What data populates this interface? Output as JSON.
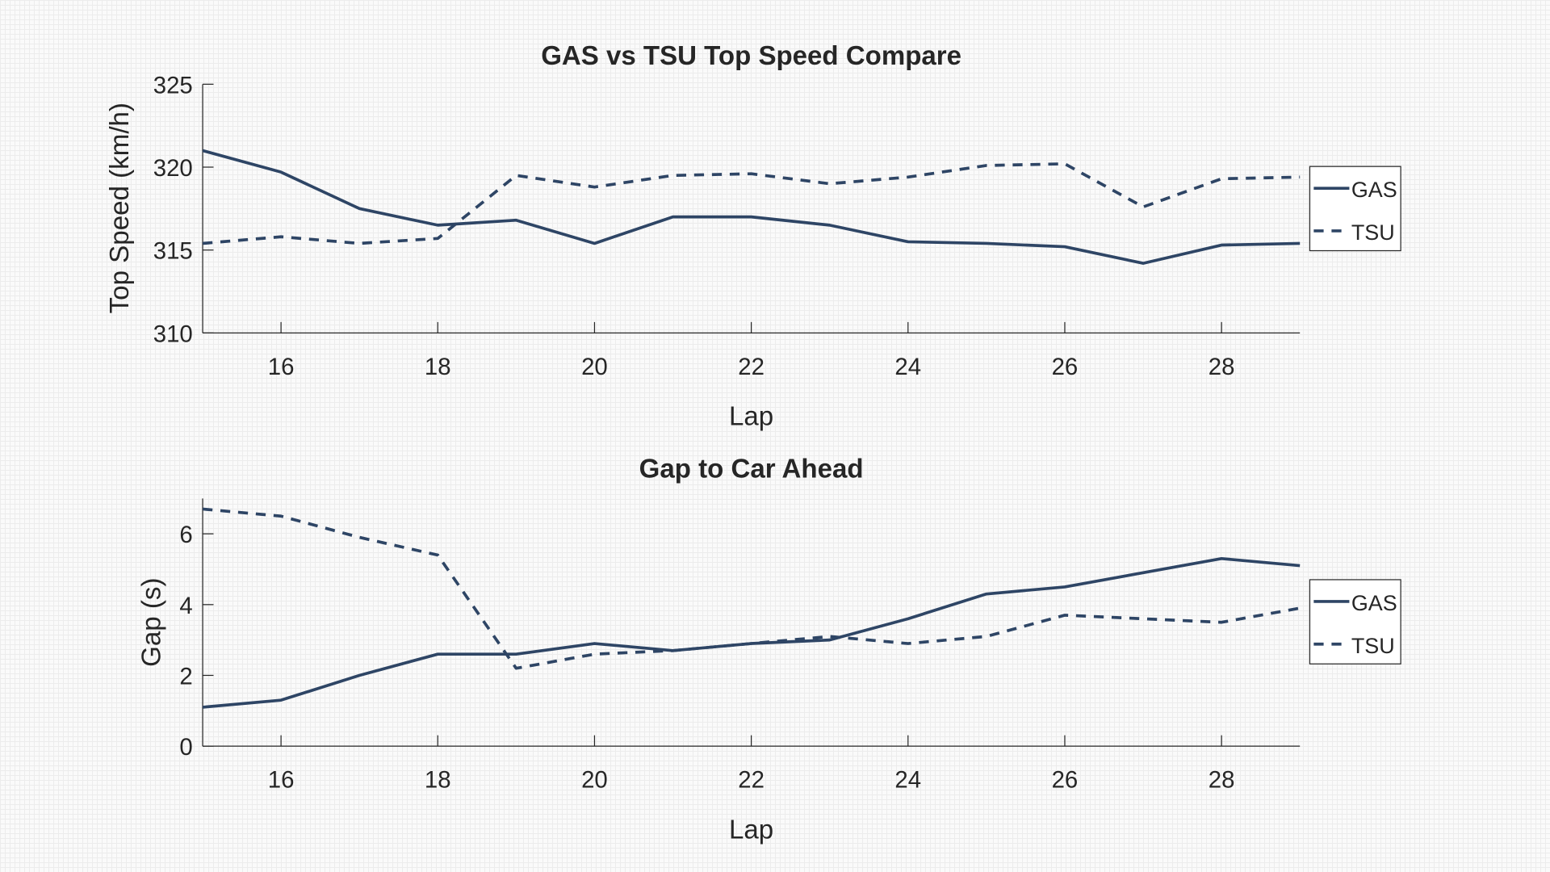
{
  "colors": {
    "line": "#2e4565",
    "axis": "#262626"
  },
  "chart_data": [
    {
      "type": "line",
      "title": "GAS vs TSU Top Speed Compare",
      "xlabel": "Lap",
      "ylabel": "Top Speed (km/h)",
      "xlim": [
        15,
        29
      ],
      "ylim": [
        310,
        325
      ],
      "xticks": [
        "16",
        "18",
        "20",
        "22",
        "24",
        "26",
        "28"
      ],
      "yticks": [
        "310",
        "315",
        "320",
        "325"
      ],
      "legend": "right",
      "x": [
        15,
        16,
        17,
        18,
        19,
        20,
        21,
        22,
        23,
        24,
        25,
        26,
        27,
        28,
        29
      ],
      "series": [
        {
          "name": "GAS",
          "style": "solid",
          "values": [
            321.0,
            319.7,
            317.5,
            316.5,
            316.8,
            315.4,
            317.0,
            317.0,
            316.5,
            315.5,
            315.4,
            315.2,
            314.2,
            315.3,
            315.4
          ]
        },
        {
          "name": "TSU",
          "style": "dashed",
          "values": [
            315.4,
            315.8,
            315.4,
            315.7,
            319.5,
            318.8,
            319.5,
            319.6,
            319.0,
            319.4,
            320.1,
            320.2,
            317.6,
            319.3,
            319.4
          ]
        }
      ]
    },
    {
      "type": "line",
      "title": "Gap to Car Ahead",
      "xlabel": "Lap",
      "ylabel": "Gap (s)",
      "xlim": [
        15,
        29
      ],
      "ylim": [
        0,
        7
      ],
      "xticks": [
        "16",
        "18",
        "20",
        "22",
        "24",
        "26",
        "28"
      ],
      "yticks": [
        "0",
        "2",
        "4",
        "6"
      ],
      "legend": "right",
      "x": [
        15,
        16,
        17,
        18,
        19,
        20,
        21,
        22,
        23,
        24,
        25,
        26,
        27,
        28,
        29
      ],
      "series": [
        {
          "name": "GAS",
          "style": "solid",
          "values": [
            1.1,
            1.3,
            2.0,
            2.6,
            2.6,
            2.9,
            2.7,
            2.9,
            3.0,
            3.6,
            4.3,
            4.5,
            4.9,
            5.3,
            5.1
          ]
        },
        {
          "name": "TSU",
          "style": "dashed",
          "values": [
            6.7,
            6.5,
            5.9,
            5.4,
            2.2,
            2.6,
            2.7,
            2.9,
            3.1,
            2.9,
            3.1,
            3.7,
            3.6,
            3.5,
            3.9
          ]
        }
      ]
    }
  ]
}
